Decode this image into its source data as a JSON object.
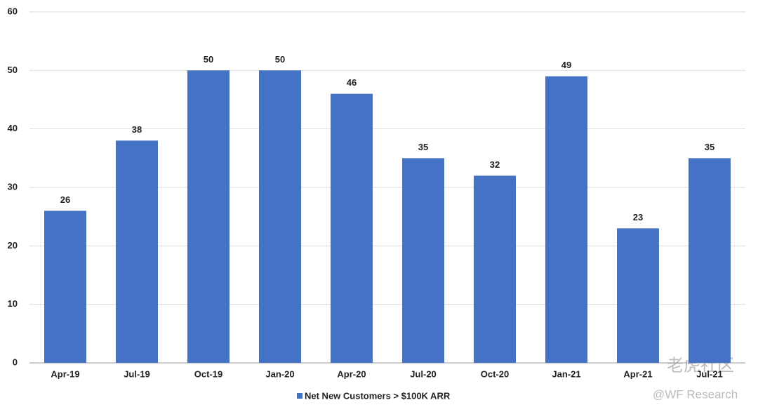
{
  "chart_data": {
    "type": "bar",
    "categories": [
      "Apr-19",
      "Jul-19",
      "Oct-19",
      "Jan-20",
      "Apr-20",
      "Jul-20",
      "Oct-20",
      "Jan-21",
      "Apr-21",
      "Jul-21"
    ],
    "series": [
      {
        "name": "Net New Customers > $100K ARR",
        "color": "#4472c4",
        "values": [
          26,
          38,
          50,
          50,
          46,
          35,
          32,
          49,
          23,
          35
        ]
      }
    ],
    "ylim": [
      0,
      60
    ],
    "yticks": [
      0,
      10,
      20,
      30,
      40,
      50,
      60
    ],
    "grid": true,
    "legend": "bottom",
    "watermark": [
      "老虎社区",
      "@WF Research"
    ]
  }
}
